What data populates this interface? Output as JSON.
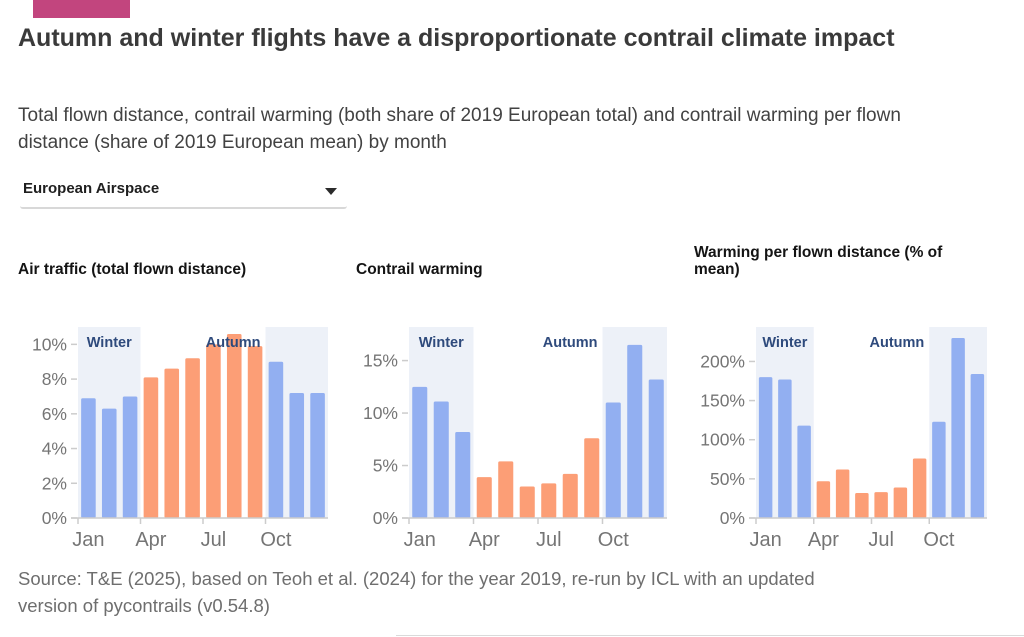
{
  "brand": {
    "accent_color": "#c2457e"
  },
  "header": {
    "title": "Autumn and winter flights have a disproportionate contrail climate impact",
    "subtitle": "Total flown distance, contrail warming (both share of 2019 European total) and contrail warming per flown distance (share of 2019 European mean) by month"
  },
  "controls": {
    "region_dropdown": {
      "value": "European Airspace",
      "icon": "chevron-down-icon"
    }
  },
  "palette": {
    "blue_bar": "#92aff1",
    "orange_bar": "#fc9e76",
    "season_band": "#edf1f8",
    "season_label": "#2e4a7c",
    "axis_text": "#757575",
    "axis_line": "#cccccc"
  },
  "chart_data": [
    {
      "type": "bar",
      "title": "Air traffic (total flown distance)",
      "categories": [
        "Jan",
        "Feb",
        "Mar",
        "Apr",
        "May",
        "Jun",
        "Jul",
        "Aug",
        "Sep",
        "Oct",
        "Nov",
        "Dec"
      ],
      "values": [
        6.9,
        6.3,
        7.0,
        8.1,
        8.6,
        9.2,
        10.0,
        10.6,
        9.9,
        9.0,
        7.2,
        7.2
      ],
      "unit": "%",
      "y_ticks": [
        0,
        2,
        4,
        6,
        8,
        10
      ],
      "y_max": 11,
      "x_tick_labels": [
        "Jan",
        "Apr",
        "Jul",
        "Oct"
      ],
      "x_tick_months": [
        0,
        3,
        6,
        9
      ],
      "grid": false,
      "bar_palette": [
        "blue_bar",
        "blue_bar",
        "blue_bar",
        "orange_bar",
        "orange_bar",
        "orange_bar",
        "orange_bar",
        "orange_bar",
        "orange_bar",
        "blue_bar",
        "blue_bar",
        "blue_bar"
      ],
      "season_bands": [
        {
          "label": "Winter",
          "from": 0,
          "to": 3,
          "label_placement": "inside-center"
        },
        {
          "label": "Autumn",
          "from": 9,
          "to": 12,
          "label_placement": "before-left-edge"
        }
      ]
    },
    {
      "type": "bar",
      "title": "Contrail warming",
      "categories": [
        "Jan",
        "Feb",
        "Mar",
        "Apr",
        "May",
        "Jun",
        "Jul",
        "Aug",
        "Sep",
        "Oct",
        "Nov",
        "Dec"
      ],
      "values": [
        12.5,
        11.1,
        8.2,
        3.9,
        5.4,
        3.0,
        3.3,
        4.2,
        7.6,
        11.0,
        16.5,
        13.2
      ],
      "unit": "%",
      "y_ticks": [
        0,
        5,
        10,
        15
      ],
      "y_max": 18.2,
      "x_tick_labels": [
        "Jan",
        "Apr",
        "Jul",
        "Oct"
      ],
      "x_tick_months": [
        0,
        3,
        6,
        9
      ],
      "grid": false,
      "bar_palette": [
        "blue_bar",
        "blue_bar",
        "blue_bar",
        "orange_bar",
        "orange_bar",
        "orange_bar",
        "orange_bar",
        "orange_bar",
        "orange_bar",
        "blue_bar",
        "blue_bar",
        "blue_bar"
      ],
      "season_bands": [
        {
          "label": "Winter",
          "from": 0,
          "to": 3,
          "label_placement": "inside-center"
        },
        {
          "label": "Autumn",
          "from": 9,
          "to": 12,
          "label_placement": "before-left-edge"
        }
      ]
    },
    {
      "type": "bar",
      "title": "Warming per flown distance (% of mean)",
      "categories": [
        "Jan",
        "Feb",
        "Mar",
        "Apr",
        "May",
        "Jun",
        "Jul",
        "Aug",
        "Sep",
        "Oct",
        "Nov",
        "Dec"
      ],
      "values": [
        180,
        177,
        118,
        47,
        62,
        32,
        33,
        39,
        76,
        123,
        230,
        184
      ],
      "unit": "%",
      "y_ticks": [
        0,
        50,
        100,
        150,
        200
      ],
      "y_max": 244,
      "x_tick_labels": [
        "Jan",
        "Apr",
        "Jul",
        "Oct"
      ],
      "x_tick_months": [
        0,
        3,
        6,
        9
      ],
      "grid": false,
      "bar_palette": [
        "blue_bar",
        "blue_bar",
        "blue_bar",
        "orange_bar",
        "orange_bar",
        "orange_bar",
        "orange_bar",
        "orange_bar",
        "orange_bar",
        "blue_bar",
        "blue_bar",
        "blue_bar"
      ],
      "season_bands": [
        {
          "label": "Winter",
          "from": 0,
          "to": 3,
          "label_placement": "inside-center"
        },
        {
          "label": "Autumn",
          "from": 9,
          "to": 12,
          "label_placement": "before-left-edge"
        }
      ]
    }
  ],
  "footer": {
    "source": "Source: T&E (2025), based on Teoh et al. (2024) for the year 2019, re-run by ICL with an updated version of pycontrails (v0.54.8)"
  }
}
